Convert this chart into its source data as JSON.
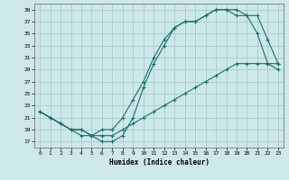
{
  "xlabel": "Humidex (Indice chaleur)",
  "background_color": "#cce8e8",
  "line_color": "#1a6e6e",
  "grid_color": "#aacccc",
  "xlim": [
    -0.5,
    23.5
  ],
  "ylim": [
    16,
    40
  ],
  "yticks": [
    17,
    19,
    21,
    23,
    25,
    27,
    29,
    31,
    33,
    35,
    37,
    39
  ],
  "xticks": [
    0,
    1,
    2,
    3,
    4,
    5,
    6,
    7,
    8,
    9,
    10,
    11,
    12,
    13,
    14,
    15,
    16,
    17,
    18,
    19,
    20,
    21,
    22,
    23
  ],
  "line1_x": [
    0,
    1,
    2,
    3,
    4,
    5,
    6,
    7,
    8,
    9,
    10,
    11,
    12,
    13,
    14,
    15,
    16,
    17,
    18,
    19,
    20,
    21,
    22,
    23
  ],
  "line1_y": [
    22,
    21,
    20,
    19,
    19,
    18,
    19,
    19,
    21,
    24,
    27,
    31,
    34,
    36,
    37,
    37,
    38,
    39,
    39,
    38,
    38,
    38,
    34,
    30
  ],
  "line2_x": [
    0,
    1,
    2,
    3,
    4,
    5,
    6,
    7,
    8,
    9,
    10,
    11,
    12,
    13,
    14,
    15,
    16,
    17,
    18,
    19,
    20,
    21,
    22,
    23
  ],
  "line2_y": [
    22,
    21,
    20,
    19,
    19,
    18,
    17,
    17,
    18,
    21,
    26,
    30,
    33,
    36,
    37,
    37,
    38,
    39,
    39,
    39,
    38,
    35,
    30,
    29
  ],
  "line3_x": [
    0,
    1,
    2,
    3,
    4,
    5,
    6,
    7,
    8,
    9,
    10,
    11,
    12,
    13,
    14,
    15,
    16,
    17,
    18,
    19,
    20,
    21,
    22,
    23
  ],
  "line3_y": [
    22,
    21,
    20,
    19,
    18,
    18,
    18,
    18,
    19,
    20,
    21,
    22,
    23,
    24,
    25,
    26,
    27,
    28,
    29,
    30,
    30,
    30,
    30,
    30
  ]
}
